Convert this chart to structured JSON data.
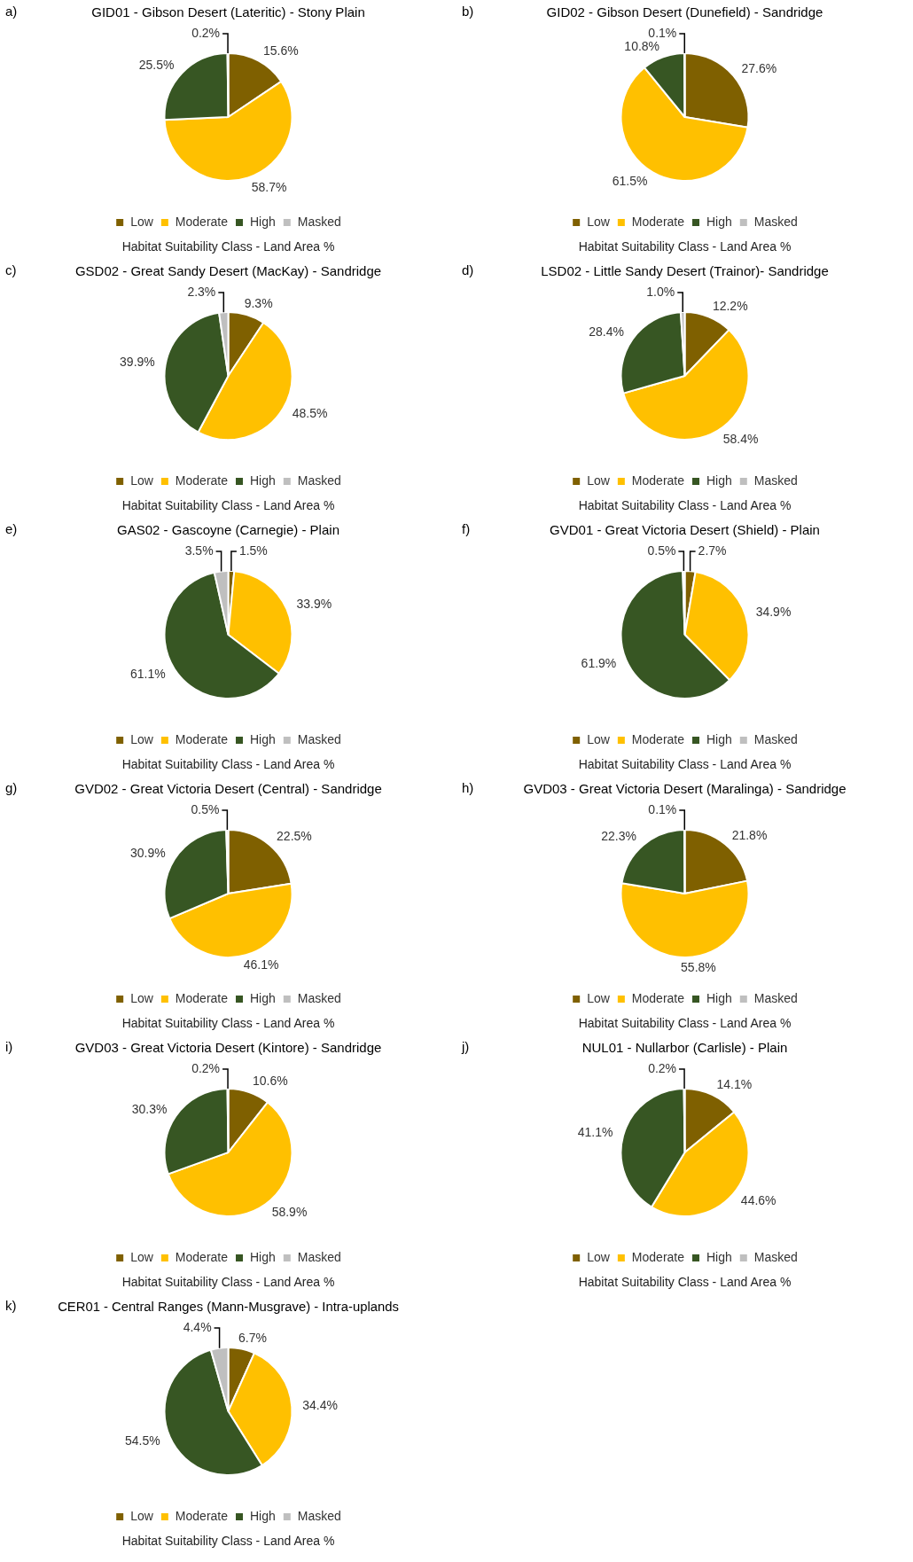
{
  "chart_data": [
    {
      "type": "pie",
      "annotations": [
        "a)"
      ],
      "title": "GID01 - Gibson Desert (Lateritic) - Stony Plain",
      "categories": [
        "Low",
        "Moderate",
        "High",
        "Masked"
      ],
      "values": [
        15.6,
        58.7,
        25.5,
        0.2
      ],
      "value_labels": [
        "15.6%",
        "58.7%",
        "25.5%",
        "0.2%"
      ],
      "colors": [
        "#7f6000",
        "#ffc000",
        "#375623",
        "#bfbfbf"
      ],
      "legend": "bottom",
      "legend_title": "Habitat Suitability Class - Land Area %"
    },
    {
      "type": "pie",
      "annotations": [
        "b)"
      ],
      "title": "GID02 - Gibson Desert (Dunefield) - Sandridge",
      "categories": [
        "Low",
        "Moderate",
        "High",
        "Masked"
      ],
      "values": [
        27.6,
        61.5,
        10.8,
        0.1
      ],
      "value_labels": [
        "27.6%",
        "61.5%",
        "10.8%",
        "0.1%"
      ],
      "colors": [
        "#7f6000",
        "#ffc000",
        "#375623",
        "#bfbfbf"
      ],
      "legend": "bottom",
      "legend_title": "Habitat Suitability Class - Land Area %"
    },
    {
      "type": "pie",
      "annotations": [
        "c)"
      ],
      "title": "GSD02 - Great Sandy Desert (MacKay) - Sandridge",
      "categories": [
        "Low",
        "Moderate",
        "High",
        "Masked"
      ],
      "values": [
        9.3,
        48.5,
        39.9,
        2.3
      ],
      "value_labels": [
        "9.3%",
        "48.5%",
        "39.9%",
        "2.3%"
      ],
      "colors": [
        "#7f6000",
        "#ffc000",
        "#375623",
        "#bfbfbf"
      ],
      "legend": "bottom",
      "legend_title": "Habitat Suitability Class - Land Area %"
    },
    {
      "type": "pie",
      "annotations": [
        "d)"
      ],
      "title": "LSD02 - Little Sandy Desert (Trainor)- Sandridge",
      "categories": [
        "Low",
        "Moderate",
        "High",
        "Masked"
      ],
      "values": [
        12.2,
        58.4,
        28.4,
        1.0
      ],
      "value_labels": [
        "12.2%",
        "58.4%",
        "28.4%",
        "1.0%"
      ],
      "colors": [
        "#7f6000",
        "#ffc000",
        "#375623",
        "#bfbfbf"
      ],
      "legend": "bottom",
      "legend_title": "Habitat Suitability Class - Land Area %"
    },
    {
      "type": "pie",
      "annotations": [
        "e)"
      ],
      "title": "GAS02 - Gascoyne (Carnegie) - Plain",
      "categories": [
        "Low",
        "Moderate",
        "High",
        "Masked"
      ],
      "values": [
        1.5,
        33.9,
        61.1,
        3.5
      ],
      "value_labels": [
        "1.5%",
        "33.9%",
        "61.1%",
        "3.5%"
      ],
      "colors": [
        "#7f6000",
        "#ffc000",
        "#375623",
        "#bfbfbf"
      ],
      "legend": "bottom",
      "legend_title": "Habitat Suitability Class - Land Area %"
    },
    {
      "type": "pie",
      "annotations": [
        "f)"
      ],
      "title": "GVD01 - Great Victoria Desert (Shield) - Plain",
      "categories": [
        "Low",
        "Moderate",
        "High",
        "Masked"
      ],
      "values": [
        2.7,
        34.9,
        61.9,
        0.5
      ],
      "value_labels": [
        "2.7%",
        "34.9%",
        "61.9%",
        "0.5%"
      ],
      "colors": [
        "#7f6000",
        "#ffc000",
        "#375623",
        "#bfbfbf"
      ],
      "legend": "bottom",
      "legend_title": "Habitat Suitability Class - Land Area %"
    },
    {
      "type": "pie",
      "annotations": [
        "g)"
      ],
      "title": "GVD02 - Great Victoria Desert (Central) - Sandridge",
      "categories": [
        "Low",
        "Moderate",
        "High",
        "Masked"
      ],
      "values": [
        22.5,
        46.1,
        30.9,
        0.5
      ],
      "value_labels": [
        "22.5%",
        "46.1%",
        "30.9%",
        "0.5%"
      ],
      "colors": [
        "#7f6000",
        "#ffc000",
        "#375623",
        "#bfbfbf"
      ],
      "legend": "bottom",
      "legend_title": "Habitat Suitability Class - Land Area %"
    },
    {
      "type": "pie",
      "annotations": [
        "h)"
      ],
      "title": "GVD03 - Great Victoria Desert (Maralinga) - Sandridge",
      "categories": [
        "Low",
        "Moderate",
        "High",
        "Masked"
      ],
      "values": [
        21.8,
        55.8,
        22.3,
        0.1
      ],
      "value_labels": [
        "21.8%",
        "55.8%",
        "22.3%",
        "0.1%"
      ],
      "colors": [
        "#7f6000",
        "#ffc000",
        "#375623",
        "#bfbfbf"
      ],
      "legend": "bottom",
      "legend_title": "Habitat Suitability Class - Land Area %"
    },
    {
      "type": "pie",
      "annotations": [
        "i)"
      ],
      "title": "GVD03 - Great Victoria Desert (Kintore) - Sandridge",
      "categories": [
        "Low",
        "Moderate",
        "High",
        "Masked"
      ],
      "values": [
        10.6,
        58.9,
        30.3,
        0.2
      ],
      "value_labels": [
        "10.6%",
        "58.9%",
        "30.3%",
        "0.2%"
      ],
      "colors": [
        "#7f6000",
        "#ffc000",
        "#375623",
        "#bfbfbf"
      ],
      "legend": "bottom",
      "legend_title": "Habitat Suitability Class - Land Area %"
    },
    {
      "type": "pie",
      "annotations": [
        "j)"
      ],
      "title": "NUL01 - Nullarbor (Carlisle) - Plain",
      "categories": [
        "Low",
        "Moderate",
        "High",
        "Masked"
      ],
      "values": [
        14.1,
        44.6,
        41.1,
        0.2
      ],
      "value_labels": [
        "14.1%",
        "44.6%",
        "41.1%",
        "0.2%"
      ],
      "colors": [
        "#7f6000",
        "#ffc000",
        "#375623",
        "#bfbfbf"
      ],
      "legend": "bottom",
      "legend_title": "Habitat Suitability Class - Land Area %"
    },
    {
      "type": "pie",
      "annotations": [
        "k)"
      ],
      "title": "CER01 - Central Ranges (Mann-Musgrave) - Intra-uplands",
      "categories": [
        "Low",
        "Moderate",
        "High",
        "Masked"
      ],
      "values": [
        6.7,
        34.4,
        54.5,
        4.4
      ],
      "value_labels": [
        "6.7%",
        "34.4%",
        "54.5%",
        "4.4%"
      ],
      "colors": [
        "#7f6000",
        "#ffc000",
        "#375623",
        "#bfbfbf"
      ],
      "legend": "bottom",
      "legend_title": "Habitat Suitability Class - Land Area %"
    }
  ]
}
